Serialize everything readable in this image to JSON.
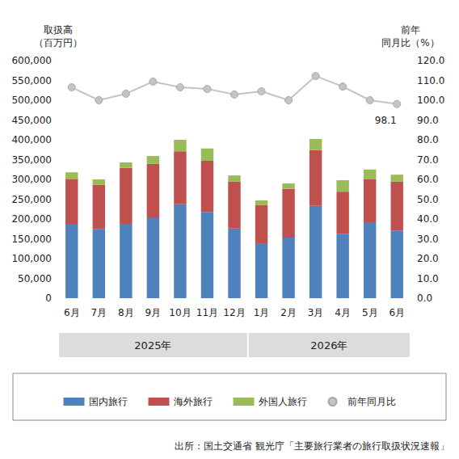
{
  "chart_data": {
    "type": "bar",
    "stacked": true,
    "y_label": "取扱高\n（百万円）",
    "y2_label": "前年\n同月比（%）",
    "categories": [
      "6月",
      "7月",
      "8月",
      "9月",
      "10月",
      "11月",
      "12月",
      "1月",
      "2月",
      "3月",
      "4月",
      "5月",
      "6月"
    ],
    "category_groups": [
      {
        "label": "2025年",
        "from": 0,
        "to": 6
      },
      {
        "label": "2026年",
        "from": 7,
        "to": 12
      }
    ],
    "series": [
      {
        "name": "国内旅行",
        "type": "bar",
        "color": "#4f81bd",
        "values": [
          188000,
          175000,
          188000,
          204000,
          237000,
          218000,
          176000,
          137000,
          153000,
          233000,
          163000,
          192000,
          171000
        ]
      },
      {
        "name": "海外旅行",
        "type": "bar",
        "color": "#c0504d",
        "values": [
          112000,
          111000,
          141000,
          135000,
          134000,
          129000,
          118000,
          98000,
          123000,
          141000,
          106000,
          108000,
          123000
        ]
      },
      {
        "name": "外国人旅行",
        "type": "bar",
        "color": "#9bbb59",
        "values": [
          18000,
          14000,
          14000,
          20000,
          29000,
          31000,
          16000,
          12000,
          14000,
          28000,
          29000,
          25000,
          18000
        ]
      },
      {
        "name": "前年同月比",
        "type": "line",
        "axis": "y2",
        "color": "#c4c4c4",
        "marker": "circle",
        "values": [
          106.5,
          100.0,
          103.3,
          109.4,
          106.5,
          105.7,
          102.9,
          104.5,
          100.0,
          112.2,
          106.9,
          100.0,
          98.1
        ],
        "value_labels": [
          null,
          null,
          null,
          null,
          null,
          null,
          null,
          null,
          null,
          null,
          null,
          null,
          "98.1"
        ]
      }
    ],
    "ylim": [
      0,
      600000
    ],
    "yticks": [
      0,
      {
        "value": 50000,
        "label": "50,000"
      },
      {
        "value": 100000,
        "label": "100,000"
      },
      {
        "value": 150000,
        "label": "150,000"
      },
      {
        "value": 200000,
        "label": "200,000"
      },
      {
        "value": 250000,
        "label": "250,000"
      },
      {
        "value": 300000,
        "label": "300,000"
      },
      {
        "value": 350000,
        "label": "350,000"
      },
      {
        "value": 400000,
        "label": "400,000"
      },
      {
        "value": 450000,
        "label": "450,000"
      },
      {
        "value": 500000,
        "label": "500,000"
      },
      {
        "value": 550000,
        "label": "550,000"
      },
      {
        "value": 600000,
        "label": "600,000"
      }
    ],
    "y2lim": [
      0,
      120
    ],
    "y2ticks": [
      {
        "value": 0,
        "label": "0.0"
      },
      {
        "value": 10,
        "label": "10.0"
      },
      {
        "value": 20,
        "label": "20.0"
      },
      {
        "value": 30,
        "label": "30.0"
      },
      {
        "value": 40,
        "label": "40.0"
      },
      {
        "value": 50,
        "label": "50.0"
      },
      {
        "value": 60,
        "label": "60.0"
      },
      {
        "value": 70,
        "label": "70.0"
      },
      {
        "value": 80,
        "label": "80.0"
      },
      {
        "value": 90,
        "label": "90.0"
      },
      {
        "value": 100,
        "label": "100.0"
      },
      {
        "value": 110,
        "label": "110.0"
      },
      {
        "value": 120,
        "label": "120.0"
      }
    ],
    "grid": false,
    "legend": "bottom",
    "source": "出所：国土交通省 観光庁「主要旅行業者の旅行取扱状況速報」"
  }
}
